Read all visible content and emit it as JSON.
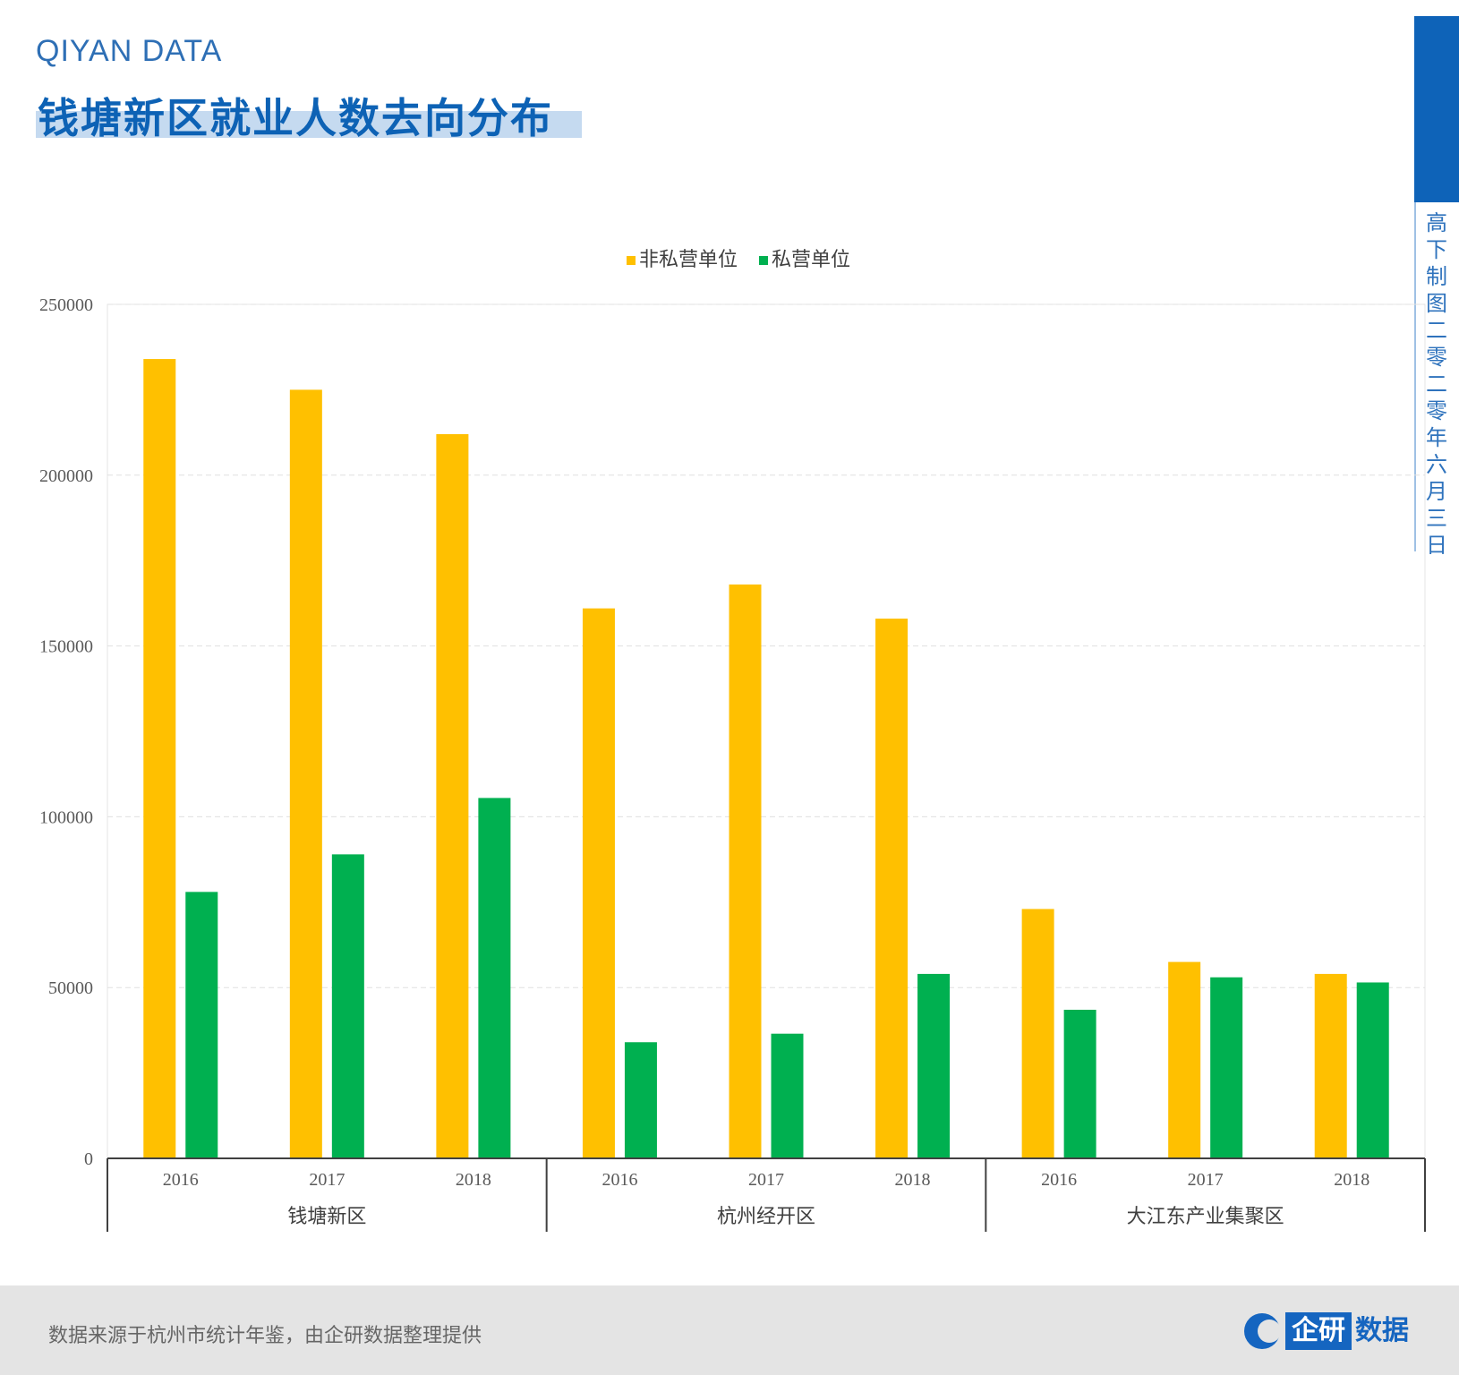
{
  "header": {
    "brand": "QIYAN DATA",
    "title": "钱塘新区就业人数去向分布"
  },
  "side": {
    "chars": [
      "高",
      "下",
      "制",
      "图",
      "二",
      "零",
      "二",
      "零",
      "年",
      "六",
      "月",
      "三",
      "日"
    ]
  },
  "footer": {
    "note": "数据来源于杭州市统计年鉴，由企研数据整理提供",
    "logo_box": "企研",
    "logo_text": "数据"
  },
  "colors": {
    "series_0": "#FFC000",
    "series_1": "#00B050",
    "accent": "#0E63B8"
  },
  "chart_data": {
    "type": "bar",
    "groups": [
      {
        "name": "钱塘新区",
        "categories": [
          "2016",
          "2017",
          "2018"
        ]
      },
      {
        "name": "杭州经开区",
        "categories": [
          "2016",
          "2017",
          "2018"
        ]
      },
      {
        "name": "大江东产业集聚区",
        "categories": [
          "2016",
          "2017",
          "2018"
        ]
      }
    ],
    "series": [
      {
        "name": "非私营单位",
        "values": [
          234000,
          225000,
          212000,
          161000,
          168000,
          158000,
          73000,
          57500,
          54000
        ]
      },
      {
        "name": "私营单位",
        "values": [
          78000,
          89000,
          105500,
          34000,
          36500,
          54000,
          43500,
          53000,
          51500
        ]
      }
    ],
    "yticks": [
      0,
      50000,
      100000,
      150000,
      200000,
      250000
    ],
    "ylim": [
      0,
      250000
    ],
    "legend_position": "top-center",
    "grid": true
  }
}
